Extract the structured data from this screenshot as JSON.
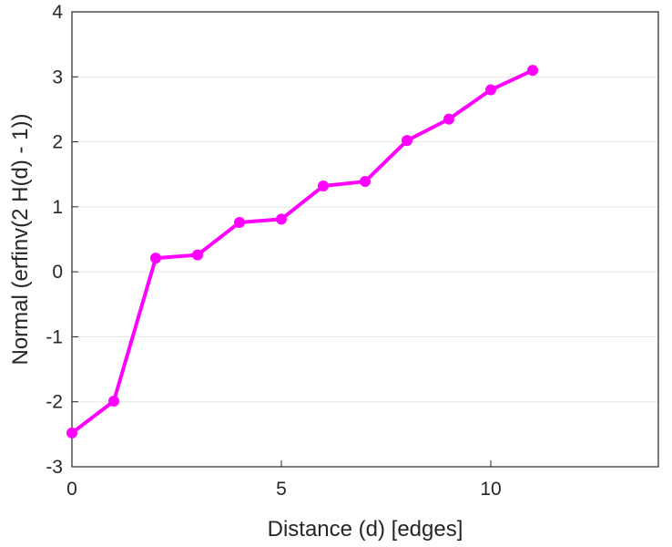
{
  "chart_data": {
    "type": "line",
    "xlabel": "Distance (d) [edges]",
    "ylabel": "Normal (erfinv(2 H(d) - 1))",
    "xlim": [
      0,
      14
    ],
    "ylim": [
      -3,
      4
    ],
    "xticks": [
      0,
      5,
      10
    ],
    "yticks": [
      -3,
      -2,
      -1,
      0,
      1,
      2,
      3,
      4
    ],
    "grid": "horizontal",
    "series": [
      {
        "color": "#ff00ff",
        "x": [
          0,
          1,
          2,
          3,
          4,
          5,
          6,
          7,
          8,
          9,
          10,
          11
        ],
        "y": [
          -2.48,
          -1.99,
          0.21,
          0.26,
          0.76,
          0.81,
          1.32,
          1.39,
          2.02,
          2.35,
          2.8,
          3.1
        ]
      }
    ]
  }
}
